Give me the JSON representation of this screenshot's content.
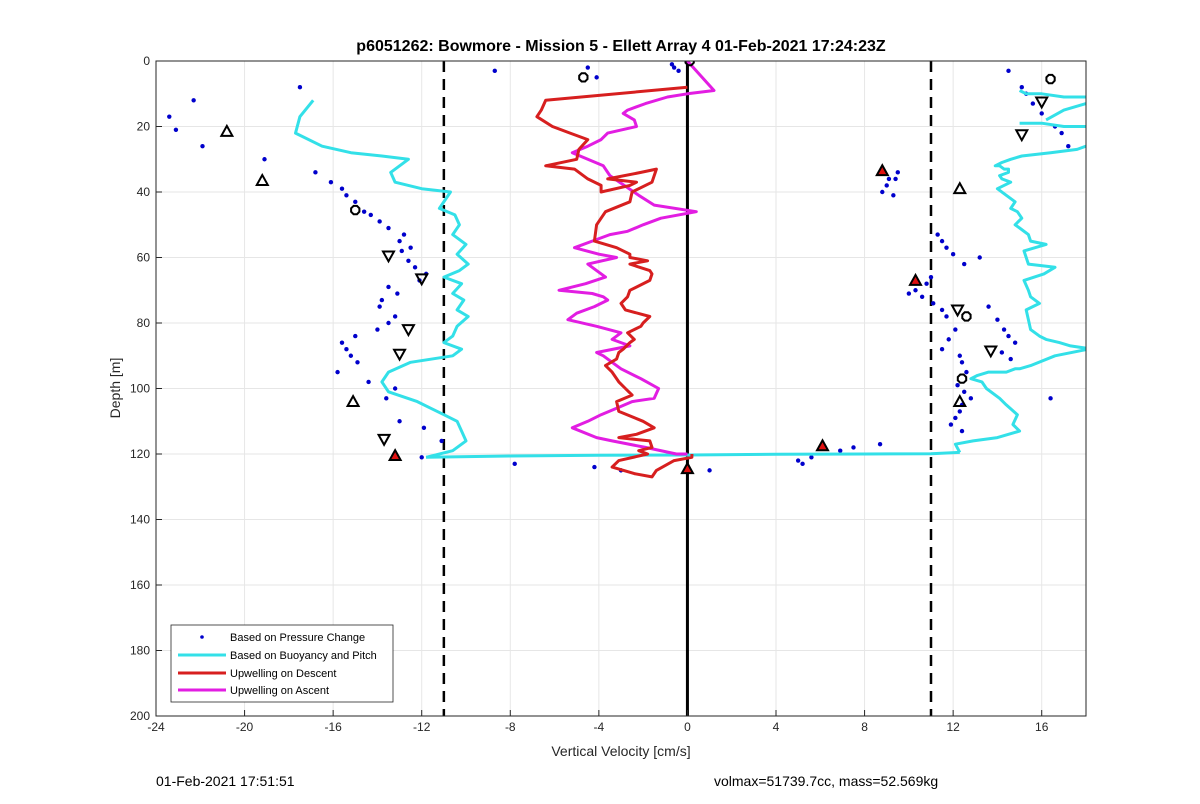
{
  "chart_data": {
    "type": "scatter",
    "title": "p6051262: Bowmore - Mission 5 - Ellett Array 4 01-Feb-2021 17:24:23Z",
    "xlabel": "Vertical Velocity [cm/s]",
    "ylabel": "Depth [m]",
    "xlim": [
      -24,
      18
    ],
    "ylim": [
      0,
      200
    ],
    "y_reversed": true,
    "xticks": [
      "-24",
      "-20",
      "-16",
      "-12",
      "-8",
      "-4",
      "0",
      "4",
      "8",
      "12",
      "16"
    ],
    "yticks": [
      "0",
      "20",
      "40",
      "60",
      "80",
      "100",
      "120",
      "140",
      "160",
      "180",
      "200"
    ],
    "grid": true,
    "legend_position": "bottom-left",
    "legend": [
      {
        "label": "Based on Pressure Change",
        "color": "#0000cc",
        "style": "dots"
      },
      {
        "label": "Based on Buoyancy and Pitch",
        "color": "#33e0e8",
        "style": "line"
      },
      {
        "label": "Upwelling on Descent",
        "color": "#d71f1f",
        "style": "line"
      },
      {
        "label": "Upwelling on Ascent",
        "color": "#e21de2",
        "style": "line"
      }
    ],
    "reference_lines": {
      "solid_x": 0,
      "dashed_x": [
        -11,
        11
      ]
    },
    "series": [
      {
        "name": "Based on Buoyancy and Pitch",
        "color": "#33e0e8",
        "segments": [
          {
            "x": [
              -16.9,
              -17.5,
              -17.7,
              -16.5,
              -15.2,
              -13.8,
              -12.6,
              -13.4,
              -13.2,
              -12.0,
              -10.7,
              -11.2,
              -10.5,
              -10.3,
              -10.6,
              -10.0,
              -10.4,
              -9.9,
              -10.3,
              -11.0,
              -10.2,
              -10.6,
              -10.1,
              -10.4,
              -9.9,
              -10.4,
              -10.6,
              -11.0,
              -10.2,
              -10.6,
              -12.5,
              -13.5,
              -13.8,
              -13.5,
              -12.2,
              -11.6,
              -11.0,
              -10.4,
              -10.2,
              -10.0,
              -10.6,
              -11.8
            ],
            "y": [
              12,
              17,
              22,
              26,
              28,
              29,
              30,
              34,
              37,
              39,
              40,
              45,
              47,
              50,
              53,
              56,
              59,
              62,
              64,
              66,
              68,
              71,
              73,
              76,
              78,
              81,
              84,
              86,
              88,
              90,
              92,
              95,
              98,
              101,
              104,
              106,
              108,
              110,
              113,
              116,
              119,
              121
            ]
          },
          {
            "x": [
              -11.8,
              -8,
              -4,
              0,
              4,
              8,
              11,
              12.3
            ],
            "y": [
              121,
              120.6,
              120.4,
              120.3,
              120.1,
              120,
              119.9,
              119.5
            ]
          },
          {
            "x": [
              12.3,
              12.1,
              12.9,
              14.0,
              15.0,
              14.7,
              14.9,
              14.4,
              14.1,
              13.5,
              13.3,
              12.8,
              13.1,
              13.6,
              14.4,
              14.8,
              15.0,
              15.5,
              16.6,
              18.1
            ],
            "y": [
              119.5,
              117,
              116,
              115,
              113,
              111,
              108,
              105,
              103,
              100,
              98,
              97,
              96,
              95,
              95,
              94,
              94,
              93,
              90,
              88
            ]
          },
          {
            "x": [
              18.1,
              17.3,
              16.8,
              16.2,
              15.9,
              15.5,
              15.4,
              15.3,
              15.9,
              15.5,
              15.4,
              15.2,
              16.1,
              16.6,
              15.4,
              15.3,
              15.2,
              16.2,
              15.5,
              15.4,
              15.0,
              14.8,
              15.1,
              14.9,
              14.6,
              14.8,
              14.4,
              14.0,
              14.6,
              14.2,
              14.1,
              14.5,
              14.5,
              14.3,
              14.1,
              13.9,
              14.2,
              14.6,
              15.1,
              16.4,
              17.6,
              18.0
            ],
            "y": [
              87.8,
              87,
              86,
              85,
              84,
              82,
              79,
              76,
              74,
              72,
              70,
              67,
              65,
              63,
              62,
              60,
              58,
              56,
              55,
              53,
              51,
              50,
              48,
              46,
              45,
              43,
              41,
              39,
              37,
              36,
              35,
              34,
              33,
              33,
              32,
              32,
              31,
              30,
              29,
              28,
              27,
              26
            ]
          },
          {
            "x": [
              16.2,
              17.0,
              18.0
            ],
            "y": [
              18,
              15,
              13
            ]
          },
          {
            "x": [
              15.0,
              16.0,
              17.0,
              18.0
            ],
            "y": [
              19,
              19,
              20,
              20
            ]
          },
          {
            "x": [
              15.0,
              15.3,
              16.0,
              17.0,
              18.0
            ],
            "y": [
              9,
              10,
              10,
              11,
              11
            ]
          }
        ]
      },
      {
        "name": "Upwelling on Descent",
        "color": "#d71f1f",
        "x": [
          0.0,
          -6.4,
          -6.6,
          -6.8,
          -6.1,
          -5.3,
          -4.5,
          -4.9,
          -5.0,
          -6.4,
          -5.1,
          -4.5,
          -3.9,
          -3.9,
          -2.6,
          -2.3,
          -3.6,
          -2.1,
          -1.4,
          -1.6,
          -2.5,
          -2.6,
          -3.7,
          -4.1,
          -4.2,
          -3.2,
          -2.6,
          -2.6,
          -1.8,
          -2.6,
          -1.7,
          -1.6,
          -1.7,
          -2.6,
          -2.7,
          -3.0,
          -2.8,
          -1.7,
          -2.0,
          -2.1,
          -2.7,
          -2.4,
          -2.6,
          -2.9,
          -3.1,
          -3.2,
          -3.7,
          -3.4,
          -3.1,
          -2.8,
          -2.5,
          -3.2,
          -3.1,
          -2.0,
          -1.5,
          -2.3,
          -3.1,
          -1.7,
          -1.6,
          -2.2,
          -1.8,
          -3.1,
          -3.4,
          -2.4,
          -1.6,
          -1.4,
          -0.6,
          0.2,
          0.2
        ],
        "y": [
          8,
          12,
          15,
          17,
          20,
          22,
          24,
          27,
          30,
          32,
          33,
          36,
          38,
          40,
          38,
          37,
          36,
          34,
          33,
          37,
          40,
          43,
          46,
          50,
          55,
          57,
          59,
          60,
          61,
          62,
          64,
          65,
          67,
          70,
          72,
          74,
          76,
          78,
          80,
          81,
          83,
          85,
          86,
          88,
          89,
          91,
          93,
          95,
          98,
          100,
          102,
          104,
          107,
          110,
          112,
          114,
          115,
          116,
          118,
          119,
          120,
          122,
          124,
          126,
          127,
          125,
          122,
          121,
          120
        ]
      },
      {
        "name": "Upwelling on Ascent",
        "color": "#e21de2",
        "x": [
          0.0,
          1.2,
          0.0,
          -0.9,
          -1.9,
          -2.7,
          -2.9,
          -2.4,
          -2.3,
          -3.6,
          -3.9,
          -4.5,
          -5.2,
          -3.8,
          -3.5,
          -2.2,
          -1.5,
          0.4,
          -1.2,
          -2.0,
          -2.7,
          -3.5,
          -4.3,
          -5.1,
          -4.0,
          -3.2,
          -4.5,
          -4.1,
          -3.7,
          -4.6,
          -5.8,
          -4.3,
          -3.8,
          -3.6,
          -4.2,
          -5.0,
          -5.4,
          -4.1,
          -3.0,
          -3.4,
          -2.6,
          -4.1,
          -3.8,
          -3.4,
          -3.0,
          -2.1,
          -1.3,
          -1.5,
          -2.5,
          -3.2,
          -3.9,
          -4.5,
          -5.2,
          -4.1,
          -3.4,
          -1.9,
          -0.5,
          0.0
        ],
        "y": [
          0,
          9,
          10,
          11,
          13,
          15,
          16,
          18,
          20,
          22,
          24,
          26,
          28,
          32,
          35,
          41,
          44,
          46,
          48,
          50,
          52,
          53,
          55,
          57,
          59,
          60,
          62,
          64,
          66,
          68,
          70,
          71,
          72,
          73,
          75,
          77,
          79,
          81,
          83,
          85,
          87,
          89,
          90,
          92,
          94,
          97,
          100,
          103,
          104,
          106,
          108,
          110,
          112,
          115,
          116,
          118,
          120,
          120
        ]
      },
      {
        "name": "Based on Pressure Change",
        "color": "#0000cc",
        "type": "scatter",
        "x": [
          -23.4,
          -23.1,
          -22.3,
          -21.9,
          -17.5,
          -19.1,
          -16.8,
          -16.1,
          -15.6,
          -15.4,
          -15.0,
          -14.6,
          -14.3,
          -13.9,
          -13.5,
          -13.0,
          -12.8,
          -12.5,
          -12.9,
          -12.6,
          -12.3,
          -11.8,
          -12.1,
          -13.5,
          -13.1,
          -13.8,
          -13.9,
          -13.2,
          -13.5,
          -14.0,
          -15.0,
          -15.6,
          -15.4,
          -15.2,
          -14.9,
          -15.8,
          -14.4,
          -13.2,
          -13.6,
          -13.0,
          -11.9,
          -11.1,
          -12.0,
          -8.7,
          -4.5,
          -4.1,
          -0.7,
          -0.6,
          -0.4,
          -7.8,
          -4.2,
          -3.0,
          1.0,
          5.0,
          5.2,
          5.6,
          6.9,
          7.5,
          8.7,
          9.1,
          9.0,
          8.8,
          9.3,
          9.4,
          9.5,
          11.0,
          10.8,
          10.3,
          10.0,
          10.6,
          11.1,
          11.5,
          11.7,
          12.1,
          11.8,
          11.5,
          12.3,
          12.4,
          12.6,
          12.2,
          12.5,
          12.8,
          12.4,
          12.3,
          12.1,
          11.9,
          12.4,
          11.3,
          11.5,
          11.7,
          12.0,
          12.5,
          13.2,
          13.6,
          14.0,
          14.3,
          14.5,
          14.8,
          14.2,
          14.6,
          16.4,
          14.5,
          15.1,
          15.3,
          15.6,
          16.0,
          16.6,
          16.9,
          17.2
        ],
        "y": [
          17,
          21,
          12,
          26,
          8,
          30,
          34,
          37,
          39,
          41,
          43,
          46,
          47,
          49,
          51,
          55,
          53,
          57,
          58,
          61,
          63,
          65,
          67,
          69,
          71,
          73,
          75,
          78,
          80,
          82,
          84,
          86,
          88,
          90,
          92,
          95,
          98,
          100,
          103,
          110,
          112,
          116,
          121,
          3,
          2,
          5,
          1,
          2,
          3,
          123,
          124,
          125,
          125,
          122,
          123,
          121,
          119,
          118,
          117,
          36,
          38,
          40,
          41,
          36,
          34,
          66,
          68,
          70,
          71,
          72,
          74,
          76,
          78,
          82,
          85,
          88,
          90,
          92,
          95,
          99,
          101,
          103,
          105,
          107,
          109,
          111,
          113,
          53,
          55,
          57,
          59,
          62,
          60,
          75,
          79,
          82,
          84,
          86,
          89,
          91,
          103,
          3,
          8,
          10,
          13,
          16,
          20,
          22,
          26
        ]
      }
    ],
    "markers": {
      "up_triangles": [
        {
          "x": -20.8,
          "y": 21.5,
          "fill": "none"
        },
        {
          "x": -19.2,
          "y": 36.5,
          "fill": "none"
        },
        {
          "x": -15.1,
          "y": 104,
          "fill": "none"
        },
        {
          "x": 12.3,
          "y": 39,
          "fill": "none"
        },
        {
          "x": 12.3,
          "y": 104,
          "fill": "none"
        },
        {
          "x": 6.1,
          "y": 117.5,
          "fill": "red"
        },
        {
          "x": 8.8,
          "y": 33.5,
          "fill": "red"
        },
        {
          "x": 10.3,
          "y": 67,
          "fill": "red"
        },
        {
          "x": -13.2,
          "y": 120.5,
          "fill": "red"
        },
        {
          "x": 0.0,
          "y": 124.5,
          "fill": "red"
        }
      ],
      "down_triangles": [
        {
          "x": -12.0,
          "y": 66.5
        },
        {
          "x": -13.0,
          "y": 89.5
        },
        {
          "x": -12.6,
          "y": 82
        },
        {
          "x": -13.7,
          "y": 115.5
        },
        {
          "x": -13.5,
          "y": 59.5
        },
        {
          "x": 12.2,
          "y": 76
        },
        {
          "x": 13.7,
          "y": 88.5
        },
        {
          "x": 16.0,
          "y": 12.5
        },
        {
          "x": 15.1,
          "y": 22.5
        }
      ],
      "octagons": [
        {
          "x": -4.7,
          "y": 5
        },
        {
          "x": 0.1,
          "y": 0
        },
        {
          "x": -15.0,
          "y": 45.5
        },
        {
          "x": 12.6,
          "y": 78
        },
        {
          "x": 12.4,
          "y": 97
        },
        {
          "x": 16.4,
          "y": 5.5
        }
      ]
    }
  },
  "footer": {
    "timestamp": "01-Feb-2021 17:51:51",
    "summary": "volmax=51739.7cc, mass=52.569kg"
  }
}
